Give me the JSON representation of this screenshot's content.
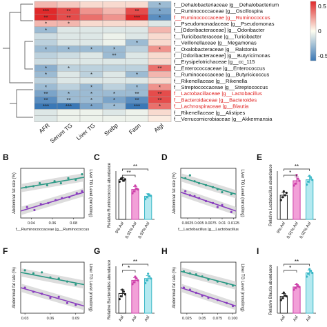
{
  "chart_data": [
    {
      "type": "heatmap",
      "columns": [
        "AFR",
        "Serum TG",
        "Liver TG",
        "Srebp",
        "Fasn",
        "Atgl"
      ],
      "rows": [
        "f__Dehalobacteriaceae |g__Dehalobacterium",
        "f__Ruminococcaceae |g__Oscillospira",
        "f__Ruminococcaceae |g__Ruminococcus",
        "f__Pseudomonadaceae |g__Pseudomonas",
        "f__[Odoribacteraceae] |g__Odoribacter",
        "f__Turicibacteraceae |g__Turicibacter",
        "f__Veillonellaceae |g__Megamonas",
        "f__Oxalobacteraceae |g__Ralstonia",
        "f__[Odoribacteraceae] |g__Butyricimonas",
        "f__Erysipelotrichaceae |g__cc_115",
        "f__Enterococcaceae |g__Enterococcus",
        "f__Ruminococcaceae |g__Butyricicoccus",
        "f__Rikenellaceae |g__Rikenella",
        "f__Streptococcaceae |g__Streptococcus",
        "f__Lactobacillaceae |g__Lactobacillus",
        "f__Bacteroidaceae |g__Bacteroides",
        "f__Lachnospiraceae |g__Blautia",
        "f__Rikenellaceae |g__Alistipes",
        "f__Verrucomicrobiaceae |g__Akkermansia"
      ],
      "highlighted_rows": [
        2,
        14,
        15,
        16
      ],
      "values": [
        [
          0.2,
          0.15,
          0.1,
          0.1,
          0.1,
          -0.3
        ],
        [
          0.6,
          0.5,
          0.3,
          0.2,
          0.5,
          -0.4
        ],
        [
          0.6,
          0.5,
          0.4,
          0.3,
          0.6,
          -0.5
        ],
        [
          0.2,
          0.2,
          0.1,
          0.1,
          0.1,
          -0.1
        ],
        [
          -0.3,
          -0.1,
          -0.1,
          -0.1,
          -0.1,
          0.2
        ],
        [
          -0.15,
          -0.1,
          -0.1,
          -0.05,
          -0.1,
          0.1
        ],
        [
          -0.2,
          -0.1,
          -0.1,
          -0.05,
          -0.3,
          0.1
        ],
        [
          -0.3,
          -0.3,
          -0.3,
          -0.3,
          -0.2,
          0.3
        ],
        [
          -0.2,
          -0.15,
          -0.1,
          -0.3,
          -0.1,
          0.1
        ],
        [
          -0.15,
          -0.1,
          -0.1,
          -0.1,
          -0.1,
          0.1
        ],
        [
          -0.35,
          -0.2,
          -0.2,
          -0.2,
          -0.2,
          0.4
        ],
        [
          -0.3,
          -0.1,
          -0.2,
          -0.1,
          -0.3,
          0.2
        ],
        [
          -0.2,
          -0.1,
          -0.1,
          -0.1,
          -0.1,
          0.1
        ],
        [
          -0.3,
          -0.2,
          -0.3,
          -0.2,
          -0.3,
          0.3
        ],
        [
          -0.4,
          -0.3,
          -0.3,
          -0.3,
          -0.3,
          0.5
        ],
        [
          -0.5,
          -0.3,
          -0.3,
          -0.4,
          -0.5,
          0.5
        ],
        [
          -0.6,
          -0.6,
          -0.4,
          -0.3,
          -0.6,
          0.4
        ],
        [
          -0.1,
          -0.05,
          -0.05,
          -0.1,
          -0.05,
          0.1
        ],
        [
          -0.1,
          -0.05,
          -0.05,
          -0.05,
          -0.05,
          0.05
        ]
      ],
      "stars": [
        [
          "",
          "",
          "",
          "",
          "",
          "*"
        ],
        [
          "***",
          "**",
          "",
          "",
          "**",
          "*"
        ],
        [
          "**",
          "**",
          "",
          "",
          "***",
          "*"
        ],
        [
          "*",
          "*",
          "",
          "",
          "",
          ""
        ],
        [
          "*",
          "",
          "",
          "",
          "",
          ""
        ],
        [
          "",
          "",
          "",
          "",
          "",
          ""
        ],
        [
          "",
          "",
          "",
          "",
          "*",
          ""
        ],
        [
          "*",
          "*",
          "*",
          "*",
          "",
          "*"
        ],
        [
          "",
          "",
          "",
          "**",
          "",
          ""
        ],
        [
          "",
          "",
          "",
          "",
          "",
          ""
        ],
        [
          "*",
          "*",
          "",
          "",
          "",
          "**"
        ],
        [
          "*",
          "",
          "*",
          "",
          "*",
          ""
        ],
        [
          "",
          "",
          "",
          "",
          "",
          ""
        ],
        [
          "*",
          "",
          "*",
          "",
          "*",
          "*"
        ],
        [
          "**",
          "*",
          "*",
          "*",
          "**",
          "**"
        ],
        [
          "**",
          "**",
          "*",
          "*",
          "**",
          "**"
        ],
        [
          "***",
          "***",
          "*",
          "*",
          "***",
          "*"
        ],
        [
          "",
          "",
          "",
          "",
          "",
          ""
        ],
        [
          "",
          "",
          "",
          "",
          "",
          ""
        ]
      ],
      "colorscale": {
        "low": "#3a78b6",
        "mid": "#fdfdf0",
        "high": "#e0292a",
        "range": [
          -0.6,
          0.6
        ]
      },
      "colorbar_ticks": [
        0.5,
        0,
        -0.5
      ]
    },
    {
      "panel": "B",
      "type": "scatter",
      "xlabel": "f__Ruminococcaceae |g__Ruminococcus",
      "ylabel_left": "Abdominal fat rate (%)",
      "ylabel_right": "Liver TG Level (mmol/mg)",
      "xticks": [
        "0.04",
        "0.06",
        "0.08"
      ],
      "xlim": [
        0.03,
        0.09
      ],
      "series": [
        {
          "color": "#2e9a86",
          "points": [
            [
              0.035,
              0.62
            ],
            [
              0.042,
              0.64
            ],
            [
              0.048,
              0.7
            ],
            [
              0.055,
              0.66
            ],
            [
              0.062,
              0.74
            ],
            [
              0.068,
              0.7
            ],
            [
              0.075,
              0.8
            ],
            [
              0.082,
              0.77
            ],
            [
              0.088,
              0.88
            ]
          ],
          "fit": [
            [
              0.03,
              0.6
            ],
            [
              0.09,
              0.82
            ]
          ]
        },
        {
          "color": "#8a3fbf",
          "points": [
            [
              0.036,
              0.22
            ],
            [
              0.043,
              0.16
            ],
            [
              0.049,
              0.28
            ],
            [
              0.056,
              0.3
            ],
            [
              0.063,
              0.36
            ],
            [
              0.069,
              0.4
            ],
            [
              0.076,
              0.42
            ],
            [
              0.083,
              0.5
            ],
            [
              0.088,
              0.54
            ]
          ],
          "fit": [
            [
              0.03,
              0.14
            ],
            [
              0.09,
              0.52
            ]
          ]
        }
      ]
    },
    {
      "panel": "C",
      "type": "bar",
      "ylabel": "Relative Ruminococcus abundance",
      "categories": [
        "0% Asl",
        "0.01% Asl",
        "0.02% Asl"
      ],
      "values": [
        0.82,
        0.62,
        0.48
      ],
      "errors": [
        0.04,
        0.06,
        0.05
      ],
      "colors": [
        "#222222",
        "#cc3fa8",
        "#3ab7c6"
      ],
      "fills": [
        "#ffffff",
        "#f2a0d8",
        "#b4e9f0"
      ],
      "points": [
        [
          0.78,
          0.84,
          0.86,
          0.8,
          0.83
        ],
        [
          0.54,
          0.58,
          0.7,
          0.64,
          0.62
        ],
        [
          0.42,
          0.46,
          0.52,
          0.5,
          0.49
        ]
      ],
      "significance": [
        "**",
        "**"
      ]
    },
    {
      "panel": "D",
      "type": "scatter",
      "xlabel": "f__Lactobacillus |g__Lactobacillus",
      "ylabel_left": "Abdominal fat rate (%)",
      "ylabel_right": "Liver TG Level (mmol/mg)",
      "xticks": [
        "0.0025",
        "0.005",
        "0.0075",
        "0.01",
        "0.0125"
      ],
      "xlim": [
        0.001,
        0.013
      ],
      "series": [
        {
          "color": "#2e9a86",
          "points": [
            [
              0.002,
              0.8
            ],
            [
              0.003,
              0.86
            ],
            [
              0.004,
              0.74
            ],
            [
              0.005,
              0.7
            ],
            [
              0.0065,
              0.66
            ],
            [
              0.008,
              0.62
            ],
            [
              0.009,
              0.58
            ],
            [
              0.01,
              0.52
            ],
            [
              0.012,
              0.48
            ]
          ],
          "fit": [
            [
              0.001,
              0.82
            ],
            [
              0.013,
              0.48
            ]
          ]
        },
        {
          "color": "#8a3fbf",
          "points": [
            [
              0.002,
              0.54
            ],
            [
              0.003,
              0.46
            ],
            [
              0.004,
              0.44
            ],
            [
              0.005,
              0.4
            ],
            [
              0.0065,
              0.34
            ],
            [
              0.008,
              0.3
            ],
            [
              0.009,
              0.22
            ],
            [
              0.01,
              0.26
            ],
            [
              0.012,
              0.12
            ]
          ],
          "fit": [
            [
              0.001,
              0.52
            ],
            [
              0.013,
              0.14
            ]
          ]
        }
      ]
    },
    {
      "panel": "E",
      "type": "bar",
      "ylabel": "Relative Lactobacillus abundance",
      "categories": [
        "0% Asl",
        "0.01% Asl",
        "0.02% Asl"
      ],
      "values": [
        0.5,
        0.8,
        0.82
      ],
      "errors": [
        0.06,
        0.08,
        0.07
      ],
      "colors": [
        "#222222",
        "#cc3fa8",
        "#3ab7c6"
      ],
      "fills": [
        "#ffffff",
        "#f2a0d8",
        "#b4e9f0"
      ],
      "points": [
        [
          0.4,
          0.46,
          0.58,
          0.5,
          0.55
        ],
        [
          0.7,
          0.74,
          0.92,
          0.84,
          0.8
        ],
        [
          0.72,
          0.78,
          0.9,
          0.86,
          0.82
        ]
      ],
      "significance": [
        "*",
        "**"
      ]
    },
    {
      "panel": "F",
      "type": "scatter",
      "xlabel": "",
      "ylabel_left": "Abdominal fat rate (%)",
      "ylabel_right": "Liver TG Level (mmol/mg)",
      "xticks": [
        "0.03",
        "0.06",
        "0.09"
      ],
      "xlim": [
        0.025,
        0.1
      ],
      "series": [
        {
          "color": "#2e9a86",
          "points": [
            [
              0.03,
              0.84
            ],
            [
              0.04,
              0.78
            ],
            [
              0.05,
              0.8
            ],
            [
              0.06,
              0.7
            ],
            [
              0.07,
              0.68
            ],
            [
              0.08,
              0.62
            ],
            [
              0.09,
              0.56
            ]
          ],
          "fit": [
            [
              0.025,
              0.8
            ],
            [
              0.1,
              0.56
            ]
          ]
        },
        {
          "color": "#8a3fbf",
          "points": [
            [
              0.03,
              0.5
            ],
            [
              0.04,
              0.42
            ],
            [
              0.05,
              0.38
            ],
            [
              0.06,
              0.3
            ],
            [
              0.07,
              0.32
            ],
            [
              0.08,
              0.2
            ],
            [
              0.09,
              0.16
            ]
          ],
          "fit": [
            [
              0.025,
              0.5
            ],
            [
              0.1,
              0.14
            ]
          ]
        }
      ]
    },
    {
      "panel": "G",
      "type": "bar",
      "ylabel": "Relative Bacteroides abundance",
      "categories": [
        "Asl",
        "Asl",
        "Asl"
      ],
      "values": [
        0.42,
        0.7,
        0.74
      ],
      "errors": [
        0.08,
        0.06,
        0.06
      ],
      "colors": [
        "#222222",
        "#cc3fa8",
        "#3ab7c6"
      ],
      "fills": [
        "#ffffff",
        "#f2a0d8",
        "#b4e9f0"
      ],
      "points": [
        [
          0.3,
          0.36,
          0.5,
          0.46,
          0.4
        ],
        [
          0.62,
          0.66,
          0.78,
          0.74,
          0.7
        ],
        [
          0.64,
          0.7,
          0.84,
          0.78,
          0.74
        ]
      ],
      "significance": [
        "*",
        "**"
      ]
    },
    {
      "panel": "H",
      "type": "scatter",
      "xlabel": "",
      "ylabel_left": "Abdominal fat rate (%)",
      "ylabel_right": "Liver TG Level (mmol/mg)",
      "xticks": [
        "0.025",
        "0.05",
        "0.075",
        "0.100"
      ],
      "xlim": [
        0.015,
        0.105
      ],
      "series": [
        {
          "color": "#2e9a86",
          "points": [
            [
              0.02,
              0.82
            ],
            [
              0.03,
              0.78
            ],
            [
              0.04,
              0.76
            ],
            [
              0.05,
              0.72
            ],
            [
              0.06,
              0.66
            ],
            [
              0.075,
              0.62
            ],
            [
              0.09,
              0.58
            ],
            [
              0.1,
              0.54
            ]
          ],
          "fit": [
            [
              0.015,
              0.82
            ],
            [
              0.105,
              0.54
            ]
          ]
        },
        {
          "color": "#8a3fbf",
          "points": [
            [
              0.02,
              0.5
            ],
            [
              0.03,
              0.46
            ],
            [
              0.04,
              0.4
            ],
            [
              0.05,
              0.34
            ],
            [
              0.06,
              0.3
            ],
            [
              0.075,
              0.26
            ],
            [
              0.09,
              0.2
            ],
            [
              0.1,
              0.14
            ]
          ],
          "fit": [
            [
              0.015,
              0.5
            ],
            [
              0.105,
              0.14
            ]
          ]
        }
      ]
    },
    {
      "panel": "I",
      "type": "bar",
      "ylabel": "Relative Blautia abundance",
      "categories": [
        "Asl",
        "Asl",
        "Asl"
      ],
      "values": [
        0.36,
        0.56,
        0.86
      ],
      "errors": [
        0.06,
        0.05,
        0.06
      ],
      "colors": [
        "#222222",
        "#cc3fa8",
        "#3ab7c6"
      ],
      "fills": [
        "#ffffff",
        "#f2a0d8",
        "#b4e9f0"
      ],
      "points": [
        [
          0.28,
          0.32,
          0.44,
          0.38,
          0.36
        ],
        [
          0.5,
          0.54,
          0.62,
          0.58,
          0.56
        ],
        [
          0.78,
          0.84,
          0.94,
          0.9,
          0.86
        ]
      ],
      "significance": [
        "*",
        "**"
      ]
    }
  ],
  "panel_labels": {
    "B": "B",
    "C": "C",
    "D": "D",
    "E": "E",
    "F": "F",
    "G": "G",
    "H": "H",
    "I": "I"
  }
}
